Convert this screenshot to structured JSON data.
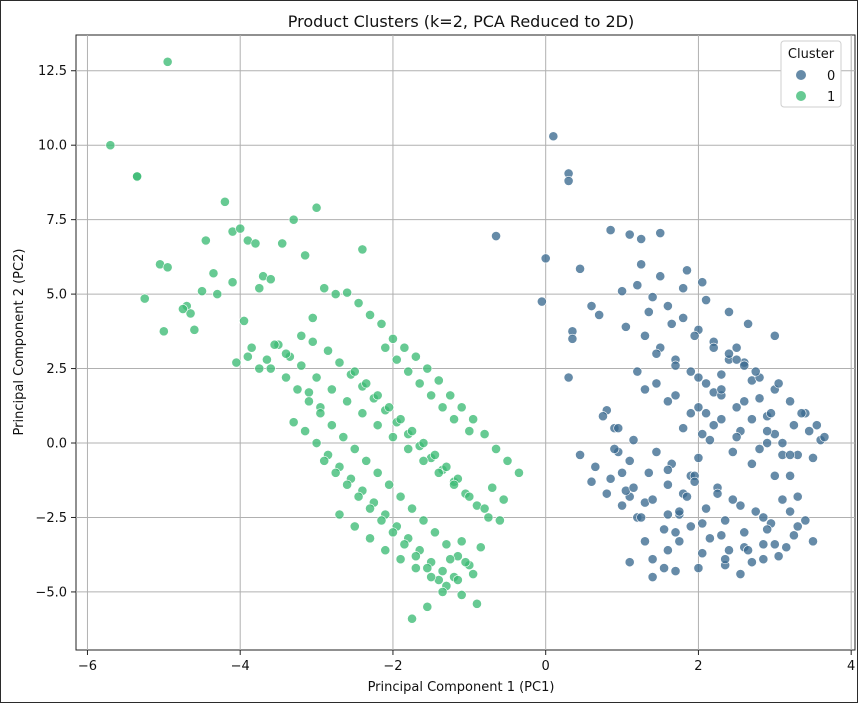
{
  "chart_data": {
    "type": "scatter",
    "title": "Product Clusters (k=2, PCA Reduced to 2D)",
    "xlabel": "Principal Component 1 (PC1)",
    "ylabel": "Principal Component 2 (PC2)",
    "xlim": [
      -6.15,
      4.05
    ],
    "ylim": [
      -6.95,
      13.7
    ],
    "xticks": [
      -6,
      -4,
      -2,
      0,
      2,
      4
    ],
    "xtick_labels": [
      "−6",
      "−4",
      "−2",
      "0",
      "2",
      "4"
    ],
    "yticks": [
      -5.0,
      -2.5,
      0.0,
      2.5,
      5.0,
      7.5,
      10.0,
      12.5
    ],
    "ytick_labels": [
      "−5.0",
      "−2.5",
      "0.0",
      "2.5",
      "5.0",
      "7.5",
      "10.0",
      "12.5"
    ],
    "grid": true,
    "legend": {
      "title": "Cluster",
      "placement": "top-right"
    },
    "series": [
      {
        "name": "0",
        "color": "#3b6a8f",
        "x": [
          0.1,
          0.3,
          0.3,
          -0.65,
          0.0,
          -0.05,
          0.45,
          0.35,
          0.35,
          0.3,
          0.85,
          1.1,
          1.25,
          1.5,
          0.6,
          0.7,
          0.8,
          0.9,
          0.95,
          1.0,
          1.1,
          1.2,
          1.3,
          1.4,
          1.55,
          1.6,
          1.7,
          1.75,
          1.8,
          1.9,
          2.0,
          2.05,
          2.1,
          2.2,
          2.3,
          2.4,
          2.5,
          2.6,
          2.7,
          2.8,
          2.9,
          3.0,
          3.1,
          3.2,
          3.3,
          3.4,
          3.5,
          3.6,
          3.65,
          1.0,
          1.2,
          1.4,
          1.6,
          1.8,
          2.0,
          2.2,
          2.4,
          2.6,
          2.8,
          3.0,
          3.2,
          3.4,
          3.55,
          1.05,
          1.3,
          1.5,
          1.7,
          1.9,
          2.1,
          2.3,
          2.5,
          2.7,
          2.9,
          3.1,
          3.3,
          0.9,
          1.1,
          1.35,
          1.6,
          1.85,
          2.1,
          2.35,
          2.6,
          2.85,
          3.05,
          0.75,
          0.95,
          1.15,
          1.45,
          1.65,
          1.95,
          2.25,
          2.45,
          2.75,
          2.95,
          3.25,
          0.6,
          0.8,
          1.0,
          1.25,
          1.55,
          1.75,
          2.05,
          2.35,
          2.55,
          2.85,
          3.15,
          0.45,
          0.65,
          0.85,
          1.05,
          1.3,
          1.6,
          1.9,
          2.15,
          2.4,
          2.7,
          3.0,
          3.3,
          1.2,
          1.45,
          1.7,
          2.0,
          2.3,
          2.55,
          2.9,
          3.2,
          1.35,
          1.65,
          1.95,
          2.2,
          2.5,
          2.75,
          3.05,
          1.25,
          1.5,
          1.8,
          2.1,
          2.4,
          2.65,
          3.0,
          1.15,
          1.4,
          1.75,
          2.05,
          2.3,
          2.6,
          2.9,
          3.2,
          1.3,
          1.6,
          1.9,
          2.2,
          2.5,
          2.8,
          1.45,
          1.7,
          2.0,
          2.3,
          2.6,
          2.95,
          3.25,
          1.6,
          1.95,
          2.25,
          2.55,
          2.85,
          3.1,
          1.8,
          2.15,
          2.45,
          2.7,
          3.0,
          1.1,
          1.4,
          1.7,
          2.0,
          2.35,
          2.65,
          3.35,
          3.45,
          3.5,
          1.85,
          2.05
        ],
        "y": [
          10.3,
          9.05,
          8.8,
          6.95,
          6.2,
          4.75,
          5.85,
          3.75,
          3.5,
          2.2,
          7.15,
          7.0,
          6.85,
          7.05,
          4.6,
          4.3,
          1.1,
          0.5,
          -0.3,
          -1.0,
          -1.8,
          -2.5,
          -3.3,
          -3.9,
          -4.2,
          -3.6,
          -3.0,
          -2.4,
          -1.7,
          -1.1,
          -0.5,
          0.3,
          1.0,
          1.7,
          2.3,
          2.8,
          3.2,
          2.7,
          2.1,
          1.5,
          0.9,
          0.3,
          -0.4,
          -1.1,
          -1.8,
          -2.6,
          -3.3,
          0.1,
          0.2,
          5.1,
          5.3,
          4.9,
          4.6,
          4.2,
          3.8,
          3.4,
          3.0,
          2.6,
          2.2,
          1.8,
          1.4,
          1.0,
          0.6,
          3.9,
          3.6,
          3.2,
          2.8,
          2.4,
          2.0,
          1.6,
          1.2,
          0.8,
          0.4,
          0.0,
          -0.4,
          -0.2,
          -0.6,
          -1.0,
          -1.4,
          -1.8,
          -2.2,
          -2.6,
          -3.0,
          -3.4,
          -3.8,
          0.9,
          0.5,
          0.1,
          -0.3,
          -0.7,
          -1.1,
          -1.5,
          -1.9,
          -2.3,
          -2.7,
          -3.1,
          -1.3,
          -1.7,
          -2.1,
          -2.5,
          -2.9,
          -3.3,
          -3.7,
          -4.1,
          -4.4,
          -3.9,
          -3.5,
          -0.4,
          -0.8,
          -1.2,
          -1.6,
          -2.0,
          -2.4,
          -2.8,
          -3.2,
          -3.6,
          -4.0,
          -3.4,
          -2.8,
          2.4,
          2.0,
          1.6,
          1.2,
          0.8,
          0.4,
          0.0,
          -0.4,
          4.4,
          4.0,
          3.6,
          3.2,
          2.8,
          2.4,
          2.0,
          6.0,
          5.6,
          5.2,
          4.8,
          4.4,
          4.0,
          3.6,
          -1.5,
          -1.9,
          -2.3,
          -2.7,
          -3.1,
          -3.5,
          -2.9,
          -2.3,
          1.8,
          1.4,
          1.0,
          0.6,
          0.2,
          -0.2,
          3.0,
          2.6,
          2.2,
          1.8,
          1.4,
          1.0,
          0.6,
          -0.9,
          -1.3,
          -1.7,
          -2.1,
          -2.5,
          -1.9,
          0.5,
          0.1,
          -0.3,
          -0.7,
          -1.1,
          -4.0,
          -4.5,
          -4.3,
          -4.2,
          -3.9,
          -3.6,
          1.0,
          0.4,
          -0.5,
          5.8,
          5.4
        ]
      },
      {
        "name": "1",
        "color": "#3cbb75",
        "x": [
          -4.95,
          -5.7,
          -5.35,
          -5.35,
          -5.05,
          -4.95,
          -5.25,
          -5.0,
          -4.7,
          -4.65,
          -4.45,
          -4.35,
          -4.2,
          -4.1,
          -4.0,
          -3.9,
          -3.8,
          -3.7,
          -3.6,
          -3.45,
          -3.3,
          -3.15,
          -3.0,
          -2.9,
          -2.75,
          -2.6,
          -2.45,
          -2.3,
          -2.15,
          -2.0,
          -1.85,
          -1.7,
          -1.55,
          -1.4,
          -1.25,
          -1.1,
          -0.95,
          -0.8,
          -0.65,
          -0.5,
          -0.35,
          -0.7,
          -0.55,
          -3.1,
          -2.95,
          -2.4,
          -3.05,
          -4.1,
          -3.75,
          -3.95,
          -4.5,
          -4.75,
          -4.3,
          -4.6,
          -4.05,
          -3.85,
          -3.65,
          -3.5,
          -3.35,
          -3.2,
          -3.05,
          -2.85,
          -2.7,
          -2.55,
          -2.4,
          -2.25,
          -2.1,
          -1.95,
          -1.8,
          -1.65,
          -1.5,
          -1.35,
          -1.2,
          -1.05,
          -0.9,
          -0.75,
          -3.6,
          -3.4,
          -3.25,
          -3.1,
          -2.95,
          -2.8,
          -2.65,
          -2.5,
          -2.35,
          -2.2,
          -2.05,
          -1.9,
          -1.75,
          -1.6,
          -1.45,
          -1.3,
          -1.15,
          -1.0,
          -0.85,
          -3.3,
          -3.15,
          -3.0,
          -2.85,
          -2.7,
          -2.55,
          -2.4,
          -2.25,
          -2.1,
          -1.95,
          -1.8,
          -1.65,
          -1.5,
          -1.35,
          -1.2,
          -1.05,
          -2.9,
          -2.75,
          -2.6,
          -2.45,
          -2.3,
          -2.15,
          -2.0,
          -1.85,
          -1.7,
          -1.55,
          -1.4,
          -1.25,
          -1.1,
          -2.5,
          -2.35,
          -2.2,
          -2.05,
          -1.9,
          -1.75,
          -1.6,
          -1.45,
          -1.3,
          -1.15,
          -2.1,
          -1.95,
          -1.8,
          -1.65,
          -1.5,
          -1.35,
          -1.2,
          -1.0,
          -3.9,
          -3.75,
          -3.55,
          -3.4,
          -3.2,
          -3.0,
          -2.8,
          -2.6,
          -2.4,
          -2.2,
          -2.0,
          -1.8,
          -1.6,
          -1.4,
          -1.2,
          -1.0,
          -0.8,
          -0.6,
          -2.7,
          -2.5,
          -2.3,
          -2.1,
          -1.9,
          -1.7,
          -1.5,
          -1.3,
          -1.1,
          -0.9,
          -1.75,
          -1.55,
          -1.35,
          -1.15,
          -0.95
        ],
        "y": [
          12.8,
          10.0,
          8.95,
          8.95,
          6.0,
          5.9,
          4.85,
          3.75,
          4.6,
          4.35,
          6.8,
          5.7,
          8.1,
          7.1,
          7.2,
          6.8,
          6.7,
          5.6,
          5.5,
          6.7,
          7.5,
          6.3,
          7.9,
          5.2,
          5.0,
          5.05,
          4.7,
          4.3,
          4.0,
          3.5,
          3.2,
          2.9,
          2.5,
          2.1,
          1.6,
          1.2,
          0.8,
          0.3,
          -0.2,
          -0.6,
          -1.0,
          -1.5,
          -1.9,
          1.7,
          1.2,
          6.5,
          4.2,
          5.4,
          5.2,
          4.1,
          5.1,
          4.5,
          5.0,
          3.8,
          2.7,
          3.2,
          2.8,
          3.3,
          2.9,
          3.6,
          3.4,
          3.1,
          2.7,
          2.3,
          1.9,
          1.5,
          1.1,
          0.7,
          0.3,
          -0.1,
          -0.5,
          -0.9,
          -1.3,
          -1.7,
          -2.1,
          -2.5,
          2.5,
          2.2,
          1.8,
          1.4,
          1.0,
          0.6,
          0.2,
          -0.2,
          -0.6,
          -1.0,
          -1.4,
          -1.8,
          -2.2,
          -2.6,
          -3.0,
          -3.4,
          -3.8,
          -4.1,
          -3.5,
          0.7,
          0.4,
          0.0,
          -0.4,
          -0.8,
          -1.2,
          -1.6,
          -2.0,
          -2.4,
          -2.8,
          -3.2,
          -3.6,
          -4.0,
          -4.3,
          -4.5,
          -4.0,
          -0.6,
          -1.0,
          -1.4,
          -1.8,
          -2.2,
          -2.6,
          -3.0,
          -3.4,
          -3.8,
          -4.2,
          -4.6,
          -3.9,
          -3.3,
          2.4,
          2.0,
          1.6,
          1.2,
          0.8,
          0.4,
          0.0,
          -0.4,
          -0.8,
          -1.2,
          3.2,
          2.8,
          2.4,
          2.0,
          1.6,
          1.2,
          0.8,
          0.4,
          2.9,
          2.5,
          3.3,
          3.0,
          2.6,
          2.2,
          1.8,
          1.4,
          1.0,
          0.6,
          0.2,
          -0.2,
          -0.6,
          -1.0,
          -1.4,
          -1.8,
          -2.2,
          -2.6,
          -2.4,
          -2.8,
          -3.2,
          -3.6,
          -3.9,
          -4.2,
          -4.5,
          -4.8,
          -5.1,
          -5.4,
          -5.9,
          -5.5,
          -5.0,
          -4.6,
          -4.4
        ]
      }
    ]
  }
}
